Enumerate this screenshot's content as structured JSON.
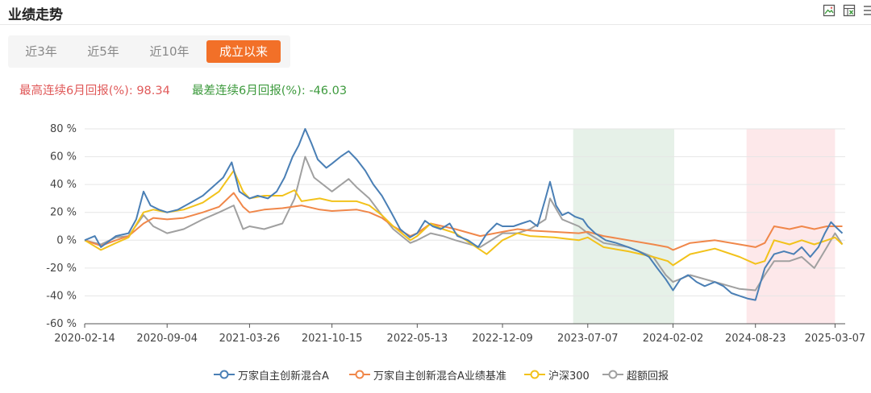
{
  "header": {
    "title": "业绩走势"
  },
  "toolbar": {
    "icons": [
      "image-download-icon",
      "excel-export-icon",
      "more-menu-icon"
    ]
  },
  "tabs": [
    {
      "label": "近3年",
      "active": false
    },
    {
      "label": "近5年",
      "active": false
    },
    {
      "label": "近10年",
      "active": false
    },
    {
      "label": "成立以来",
      "active": true
    }
  ],
  "stats": {
    "best_label": "最高连续6月回报(%): ",
    "best_value": "98.34",
    "worst_label": "最差连续6月回报(%): ",
    "worst_value": "-46.03"
  },
  "colors": {
    "accent": "#f27028",
    "fund": "#4a7fb5",
    "benchmark": "#f0874a",
    "hs300": "#f2c21b",
    "excess": "#a0a0a0",
    "green_band": "#e6f1e8",
    "red_band": "#fde8ea"
  },
  "chart_data": {
    "type": "line",
    "x_tick_labels": [
      "2020-02-14",
      "2020-09-04",
      "2021-03-26",
      "2021-10-15",
      "2022-05-13",
      "2022-12-09",
      "2023-07-07",
      "2024-02-02",
      "2024-08-23",
      "2025-03-07"
    ],
    "y_tick_labels": [
      "80 %",
      "60 %",
      "40 %",
      "20 %",
      "0 %",
      "-20 %",
      "-40 %",
      "-60 %"
    ],
    "ylim": [
      -60,
      80
    ],
    "xlim": [
      "2020-02-14",
      "2025-04-01"
    ],
    "grid": true,
    "shaded_periods": [
      {
        "start": "2023-06-01",
        "end": "2024-02-05",
        "color": "green"
      },
      {
        "start": "2024-08-01",
        "end": "2025-03-07",
        "color": "red"
      }
    ],
    "series": [
      {
        "name": "万家自主创新混合A",
        "color": "#4a7fb5",
        "points": [
          [
            "2020-02-14",
            0
          ],
          [
            "2020-03-10",
            3
          ],
          [
            "2020-03-25",
            -5
          ],
          [
            "2020-05-01",
            3
          ],
          [
            "2020-06-01",
            5
          ],
          [
            "2020-06-20",
            15
          ],
          [
            "2020-07-08",
            35
          ],
          [
            "2020-07-25",
            25
          ],
          [
            "2020-08-15",
            22
          ],
          [
            "2020-09-04",
            20
          ],
          [
            "2020-10-01",
            22
          ],
          [
            "2020-11-01",
            27
          ],
          [
            "2020-12-01",
            32
          ],
          [
            "2021-01-01",
            40
          ],
          [
            "2021-01-20",
            45
          ],
          [
            "2021-02-10",
            56
          ],
          [
            "2021-03-01",
            35
          ],
          [
            "2021-03-26",
            30
          ],
          [
            "2021-04-15",
            32
          ],
          [
            "2021-05-10",
            30
          ],
          [
            "2021-06-01",
            35
          ],
          [
            "2021-06-20",
            45
          ],
          [
            "2021-07-10",
            60
          ],
          [
            "2021-07-25",
            68
          ],
          [
            "2021-08-10",
            80
          ],
          [
            "2021-08-25",
            70
          ],
          [
            "2021-09-10",
            58
          ],
          [
            "2021-10-01",
            52
          ],
          [
            "2021-10-15",
            55
          ],
          [
            "2021-11-05",
            60
          ],
          [
            "2021-11-25",
            64
          ],
          [
            "2021-12-15",
            58
          ],
          [
            "2022-01-05",
            50
          ],
          [
            "2022-01-25",
            40
          ],
          [
            "2022-02-15",
            32
          ],
          [
            "2022-03-10",
            20
          ],
          [
            "2022-04-01",
            8
          ],
          [
            "2022-04-25",
            2
          ],
          [
            "2022-05-13",
            5
          ],
          [
            "2022-06-01",
            14
          ],
          [
            "2022-06-20",
            10
          ],
          [
            "2022-07-10",
            8
          ],
          [
            "2022-08-01",
            12
          ],
          [
            "2022-08-20",
            3
          ],
          [
            "2022-09-15",
            0
          ],
          [
            "2022-10-10",
            -5
          ],
          [
            "2022-11-01",
            5
          ],
          [
            "2022-11-25",
            12
          ],
          [
            "2022-12-09",
            10
          ],
          [
            "2023-01-05",
            10
          ],
          [
            "2023-01-25",
            12
          ],
          [
            "2023-02-15",
            14
          ],
          [
            "2023-03-05",
            10
          ],
          [
            "2023-03-25",
            30
          ],
          [
            "2023-04-05",
            42
          ],
          [
            "2023-04-20",
            25
          ],
          [
            "2023-05-05",
            18
          ],
          [
            "2023-05-20",
            20
          ],
          [
            "2023-06-05",
            17
          ],
          [
            "2023-06-25",
            15
          ],
          [
            "2023-07-07",
            10
          ],
          [
            "2023-07-25",
            5
          ],
          [
            "2023-08-20",
            0
          ],
          [
            "2023-09-15",
            -2
          ],
          [
            "2023-10-15",
            -5
          ],
          [
            "2023-11-10",
            -8
          ],
          [
            "2023-12-05",
            -12
          ],
          [
            "2023-12-25",
            -20
          ],
          [
            "2024-01-15",
            -28
          ],
          [
            "2024-02-02",
            -36
          ],
          [
            "2024-02-20",
            -28
          ],
          [
            "2024-03-10",
            -25
          ],
          [
            "2024-03-31",
            -30
          ],
          [
            "2024-04-20",
            -33
          ],
          [
            "2024-05-15",
            -30
          ],
          [
            "2024-06-05",
            -33
          ],
          [
            "2024-06-25",
            -38
          ],
          [
            "2024-07-15",
            -40
          ],
          [
            "2024-08-05",
            -42
          ],
          [
            "2024-08-23",
            -43
          ],
          [
            "2024-09-15",
            -20
          ],
          [
            "2024-10-08",
            -10
          ],
          [
            "2024-11-01",
            -8
          ],
          [
            "2024-11-25",
            -10
          ],
          [
            "2024-12-15",
            -5
          ],
          [
            "2025-01-05",
            -12
          ],
          [
            "2025-01-25",
            -5
          ],
          [
            "2025-02-10",
            5
          ],
          [
            "2025-02-25",
            13
          ],
          [
            "2025-03-07",
            10
          ],
          [
            "2025-03-25",
            5
          ]
        ]
      },
      {
        "name": "万家自主创新混合A业绩基准",
        "color": "#f0874a",
        "points": [
          [
            "2020-02-14",
            0
          ],
          [
            "2020-03-25",
            -4
          ],
          [
            "2020-05-01",
            0
          ],
          [
            "2020-06-01",
            3
          ],
          [
            "2020-07-08",
            12
          ],
          [
            "2020-08-01",
            16
          ],
          [
            "2020-09-04",
            15
          ],
          [
            "2020-10-15",
            16
          ],
          [
            "2020-12-01",
            20
          ],
          [
            "2021-01-10",
            24
          ],
          [
            "2021-02-15",
            34
          ],
          [
            "2021-03-10",
            24
          ],
          [
            "2021-03-26",
            20
          ],
          [
            "2021-05-01",
            22
          ],
          [
            "2021-06-15",
            23
          ],
          [
            "2021-08-01",
            25
          ],
          [
            "2021-09-15",
            22
          ],
          [
            "2021-10-15",
            21
          ],
          [
            "2021-12-15",
            22
          ],
          [
            "2022-01-15",
            20
          ],
          [
            "2022-02-15",
            16
          ],
          [
            "2022-03-15",
            10
          ],
          [
            "2022-04-26",
            3
          ],
          [
            "2022-05-13",
            5
          ],
          [
            "2022-06-15",
            12
          ],
          [
            "2022-07-15",
            10
          ],
          [
            "2022-08-15",
            8
          ],
          [
            "2022-10-15",
            3
          ],
          [
            "2022-12-09",
            6
          ],
          [
            "2023-01-15",
            8
          ],
          [
            "2023-02-15",
            7
          ],
          [
            "2023-04-15",
            6
          ],
          [
            "2023-06-15",
            5
          ],
          [
            "2023-07-07",
            6
          ],
          [
            "2023-08-15",
            3
          ],
          [
            "2023-10-15",
            0
          ],
          [
            "2023-12-15",
            -3
          ],
          [
            "2024-01-20",
            -5
          ],
          [
            "2024-02-02",
            -7
          ],
          [
            "2024-03-15",
            -2
          ],
          [
            "2024-05-15",
            0
          ],
          [
            "2024-07-15",
            -3
          ],
          [
            "2024-08-23",
            -5
          ],
          [
            "2024-09-15",
            -2
          ],
          [
            "2024-10-08",
            10
          ],
          [
            "2024-11-15",
            8
          ],
          [
            "2024-12-15",
            10
          ],
          [
            "2025-01-15",
            8
          ],
          [
            "2025-02-15",
            10
          ],
          [
            "2025-03-07",
            10
          ],
          [
            "2025-03-25",
            10
          ]
        ]
      },
      {
        "name": "沪深300",
        "color": "#f2c21b",
        "points": [
          [
            "2020-02-14",
            0
          ],
          [
            "2020-03-25",
            -7
          ],
          [
            "2020-05-01",
            -2
          ],
          [
            "2020-06-01",
            2
          ],
          [
            "2020-07-08",
            20
          ],
          [
            "2020-08-01",
            22
          ],
          [
            "2020-09-04",
            20
          ],
          [
            "2020-10-15",
            22
          ],
          [
            "2020-12-01",
            27
          ],
          [
            "2021-01-10",
            35
          ],
          [
            "2021-02-15",
            50
          ],
          [
            "2021-03-10",
            35
          ],
          [
            "2021-03-26",
            30
          ],
          [
            "2021-05-01",
            32
          ],
          [
            "2021-06-15",
            32
          ],
          [
            "2021-07-15",
            36
          ],
          [
            "2021-08-01",
            28
          ],
          [
            "2021-09-15",
            30
          ],
          [
            "2021-10-15",
            28
          ],
          [
            "2021-12-15",
            28
          ],
          [
            "2022-01-15",
            25
          ],
          [
            "2022-02-15",
            18
          ],
          [
            "2022-03-15",
            10
          ],
          [
            "2022-04-26",
            0
          ],
          [
            "2022-05-13",
            3
          ],
          [
            "2022-06-15",
            12
          ],
          [
            "2022-07-15",
            8
          ],
          [
            "2022-08-15",
            5
          ],
          [
            "2022-10-31",
            -10
          ],
          [
            "2022-12-09",
            0
          ],
          [
            "2023-01-15",
            5
          ],
          [
            "2023-02-15",
            3
          ],
          [
            "2023-04-15",
            2
          ],
          [
            "2023-06-15",
            0
          ],
          [
            "2023-07-07",
            2
          ],
          [
            "2023-08-15",
            -5
          ],
          [
            "2023-10-15",
            -8
          ],
          [
            "2023-12-15",
            -12
          ],
          [
            "2024-01-20",
            -15
          ],
          [
            "2024-02-02",
            -18
          ],
          [
            "2024-03-15",
            -10
          ],
          [
            "2024-05-15",
            -6
          ],
          [
            "2024-07-15",
            -12
          ],
          [
            "2024-08-23",
            -17
          ],
          [
            "2024-09-15",
            -15
          ],
          [
            "2024-10-08",
            0
          ],
          [
            "2024-11-15",
            -3
          ],
          [
            "2024-12-15",
            0
          ],
          [
            "2025-01-15",
            -3
          ],
          [
            "2025-02-15",
            0
          ],
          [
            "2025-03-07",
            2
          ],
          [
            "2025-03-25",
            -3
          ]
        ]
      },
      {
        "name": "超额回报",
        "color": "#a0a0a0",
        "points": [
          [
            "2020-02-14",
            0
          ],
          [
            "2020-03-25",
            -3
          ],
          [
            "2020-05-01",
            2
          ],
          [
            "2020-06-01",
            3
          ],
          [
            "2020-07-08",
            18
          ],
          [
            "2020-08-01",
            10
          ],
          [
            "2020-09-04",
            5
          ],
          [
            "2020-10-15",
            8
          ],
          [
            "2020-12-01",
            15
          ],
          [
            "2021-01-10",
            20
          ],
          [
            "2021-02-15",
            25
          ],
          [
            "2021-03-10",
            8
          ],
          [
            "2021-03-26",
            10
          ],
          [
            "2021-05-01",
            8
          ],
          [
            "2021-06-15",
            12
          ],
          [
            "2021-07-15",
            30
          ],
          [
            "2021-08-10",
            60
          ],
          [
            "2021-09-01",
            45
          ],
          [
            "2021-10-15",
            35
          ],
          [
            "2021-11-25",
            44
          ],
          [
            "2021-12-15",
            38
          ],
          [
            "2022-01-15",
            30
          ],
          [
            "2022-02-15",
            18
          ],
          [
            "2022-03-15",
            8
          ],
          [
            "2022-04-26",
            -2
          ],
          [
            "2022-05-13",
            0
          ],
          [
            "2022-06-15",
            5
          ],
          [
            "2022-07-15",
            3
          ],
          [
            "2022-08-15",
            0
          ],
          [
            "2022-10-15",
            -5
          ],
          [
            "2022-12-09",
            5
          ],
          [
            "2023-01-15",
            5
          ],
          [
            "2023-02-15",
            8
          ],
          [
            "2023-03-25",
            15
          ],
          [
            "2023-04-05",
            30
          ],
          [
            "2023-05-05",
            15
          ],
          [
            "2023-06-15",
            10
          ],
          [
            "2023-07-07",
            5
          ],
          [
            "2023-08-15",
            -2
          ],
          [
            "2023-10-15",
            -5
          ],
          [
            "2023-12-15",
            -12
          ],
          [
            "2024-01-15",
            -25
          ],
          [
            "2024-02-02",
            -30
          ],
          [
            "2024-03-15",
            -25
          ],
          [
            "2024-05-15",
            -30
          ],
          [
            "2024-07-15",
            -35
          ],
          [
            "2024-08-23",
            -36
          ],
          [
            "2024-09-15",
            -25
          ],
          [
            "2024-10-08",
            -15
          ],
          [
            "2024-11-15",
            -15
          ],
          [
            "2024-12-15",
            -12
          ],
          [
            "2025-01-15",
            -20
          ],
          [
            "2025-02-15",
            -5
          ],
          [
            "2025-03-07",
            5
          ],
          [
            "2025-03-25",
            -3
          ]
        ]
      }
    ]
  }
}
